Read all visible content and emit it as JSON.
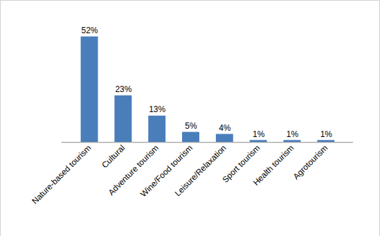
{
  "chart_data": {
    "type": "bar",
    "categories": [
      "Nature-based tourism",
      "Cultural",
      "Adventure tourism",
      "Wine/Food tourism",
      "Leisure/Relaxation",
      "Sport tourism",
      "Health tourism",
      "Agrotourism"
    ],
    "values": [
      52,
      23,
      13,
      5,
      4,
      1,
      1,
      1
    ],
    "value_labels": [
      "52%",
      "23%",
      "13%",
      "5%",
      "4%",
      "1%",
      "1%",
      "1%"
    ],
    "color": "#4a7ebb",
    "ylim": [
      0,
      55
    ],
    "grid": false,
    "data_labels": true,
    "tick_labels": "x"
  }
}
